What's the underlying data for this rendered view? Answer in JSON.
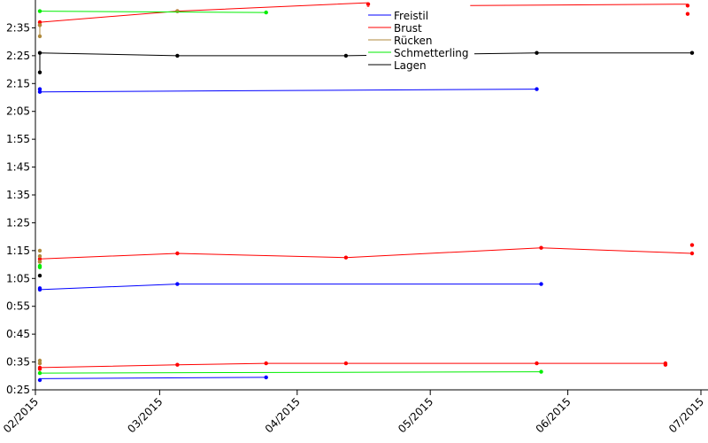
{
  "chart_data": {
    "type": "line",
    "title": "",
    "xlabel": "",
    "ylabel": "",
    "x_unit": "date",
    "y_unit": "m:ss",
    "x_ticks": [
      "02/2015",
      "03/2015",
      "04/2015",
      "05/2015",
      "06/2015",
      "07/2015"
    ],
    "y_ticks": [
      "0:25",
      "0:35",
      "0:45",
      "0:55",
      "1:05",
      "1:15",
      "1:25",
      "1:35",
      "1:45",
      "1:55",
      "2:05",
      "2:15",
      "2:25",
      "2:35"
    ],
    "xlim": [
      "2015-02-01",
      "2015-07-01"
    ],
    "ylim": [
      "0:25",
      "2:45"
    ],
    "grid": false,
    "legend_position": "top-right",
    "series": [
      {
        "name": "Freistil",
        "color": "#0000ff",
        "curves": [
          [
            [
              "2015-02-02",
              "0:29"
            ],
            [
              "2015-03-25",
              "0:29.5"
            ]
          ],
          [
            [
              "2015-02-02",
              "1:01"
            ],
            [
              "2015-03-05",
              "1:03"
            ],
            [
              "2015-05-26",
              "1:03"
            ]
          ],
          [
            [
              "2015-02-02",
              "2:12"
            ],
            [
              "2015-05-25",
              "2:13"
            ]
          ]
        ],
        "markers": [
          [
            "2015-02-02",
            "0:28.5"
          ],
          [
            "2015-03-25",
            "0:29.5"
          ],
          [
            "2015-02-02",
            "1:01"
          ],
          [
            "2015-02-02",
            "1:01.5"
          ],
          [
            "2015-03-05",
            "1:03"
          ],
          [
            "2015-05-26",
            "1:03"
          ],
          [
            "2015-02-02",
            "2:12"
          ],
          [
            "2015-02-02",
            "2:13"
          ],
          [
            "2015-05-25",
            "2:13"
          ]
        ]
      },
      {
        "name": "Brust",
        "color": "#ff0000",
        "curves": [
          [
            [
              "2015-02-02",
              "0:33"
            ],
            [
              "2015-03-05",
              "0:34"
            ],
            [
              "2015-03-25",
              "0:34.5"
            ],
            [
              "2015-04-12",
              "0:34.5"
            ],
            [
              "2015-05-25",
              "0:34.5"
            ],
            [
              "2015-06-23",
              "0:34.5"
            ]
          ],
          [
            [
              "2015-02-02",
              "1:12"
            ],
            [
              "2015-03-05",
              "1:14"
            ],
            [
              "2015-04-12",
              "1:12.5"
            ],
            [
              "2015-05-26",
              "1:16"
            ],
            [
              "2015-06-29",
              "1:14"
            ]
          ],
          [
            [
              "2015-02-02",
              "2:37"
            ],
            [
              "2015-03-05",
              "2:41"
            ],
            [
              "2015-04-17",
              "2:44"
            ]
          ],
          [
            [
              "2015-05-10",
              "2:43"
            ],
            [
              "2015-06-28",
              "2:43.5"
            ]
          ]
        ],
        "markers": [
          [
            "2015-02-02",
            "0:32.5"
          ],
          [
            "2015-02-02",
            "0:33"
          ],
          [
            "2015-03-05",
            "0:34"
          ],
          [
            "2015-03-25",
            "0:34.5"
          ],
          [
            "2015-04-12",
            "0:34.5"
          ],
          [
            "2015-05-25",
            "0:34.5"
          ],
          [
            "2015-06-23",
            "0:34"
          ],
          [
            "2015-06-23",
            "0:34.5"
          ],
          [
            "2015-02-02",
            "1:11"
          ],
          [
            "2015-02-02",
            "1:12"
          ],
          [
            "2015-03-05",
            "1:14"
          ],
          [
            "2015-04-12",
            "1:12.5"
          ],
          [
            "2015-05-26",
            "1:16"
          ],
          [
            "2015-06-29",
            "1:14"
          ],
          [
            "2015-06-29",
            "1:17"
          ],
          [
            "2015-02-02",
            "2:36"
          ],
          [
            "2015-02-02",
            "2:37"
          ],
          [
            "2015-03-05",
            "2:41"
          ],
          [
            "2015-04-17",
            "2:42"
          ],
          [
            "2015-04-17",
            "2:43.5"
          ],
          [
            "2015-06-28",
            "2:40"
          ],
          [
            "2015-06-28",
            "2:43"
          ]
        ]
      },
      {
        "name": "Rücken",
        "color": "#b08a3c",
        "curves": [
          [
            [
              "2015-02-02",
              "2:32"
            ],
            [
              "2015-02-02",
              "2:36"
            ]
          ]
        ],
        "markers": [
          [
            "2015-02-02",
            "0:34.5"
          ],
          [
            "2015-02-02",
            "0:35.5"
          ],
          [
            "2015-02-02",
            "1:11"
          ],
          [
            "2015-02-02",
            "1:13"
          ],
          [
            "2015-02-02",
            "1:15"
          ],
          [
            "2015-02-02",
            "2:32"
          ],
          [
            "2015-02-02",
            "2:36"
          ],
          [
            "2015-03-05",
            "2:41"
          ]
        ]
      },
      {
        "name": "Schmetterling",
        "color": "#00ee00",
        "curves": [
          [
            [
              "2015-02-02",
              "0:31"
            ],
            [
              "2015-05-26",
              "0:31.5"
            ]
          ],
          [
            [
              "2015-02-02",
              "2:41"
            ],
            [
              "2015-03-25",
              "2:40.5"
            ]
          ]
        ],
        "markers": [
          [
            "2015-02-02",
            "0:31"
          ],
          [
            "2015-05-26",
            "0:31.5"
          ],
          [
            "2015-02-02",
            "1:09"
          ],
          [
            "2015-02-02",
            "1:09.5"
          ],
          [
            "2015-02-02",
            "2:41"
          ],
          [
            "2015-03-25",
            "2:40.5"
          ]
        ]
      },
      {
        "name": "Lagen",
        "color": "#000000",
        "curves": [
          [
            [
              "2015-02-02",
              "2:19"
            ],
            [
              "2015-02-02",
              "2:26"
            ],
            [
              "2015-03-05",
              "2:25"
            ],
            [
              "2015-04-12",
              "2:25"
            ],
            [
              "2015-05-25",
              "2:26"
            ],
            [
              "2015-06-29",
              "2:26"
            ]
          ]
        ],
        "markers": [
          [
            "2015-02-02",
            "1:06"
          ],
          [
            "2015-02-02",
            "2:19"
          ],
          [
            "2015-02-02",
            "2:26"
          ],
          [
            "2015-03-05",
            "2:25"
          ],
          [
            "2015-04-12",
            "2:25"
          ],
          [
            "2015-05-25",
            "2:26"
          ],
          [
            "2015-06-29",
            "2:26"
          ]
        ]
      }
    ]
  }
}
